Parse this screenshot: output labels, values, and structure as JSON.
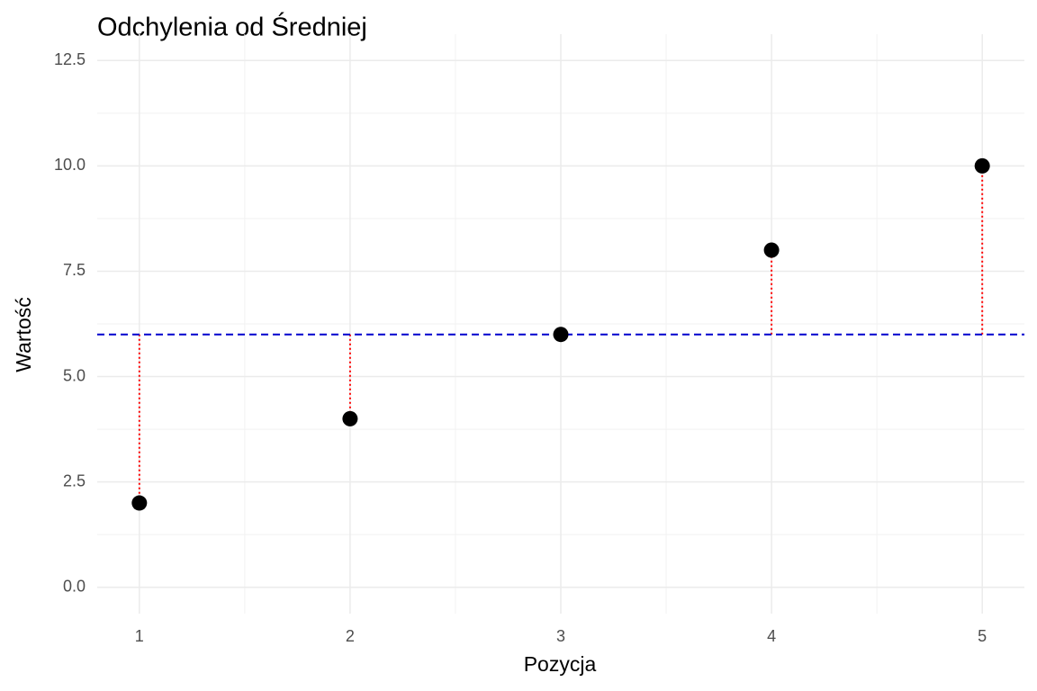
{
  "chart_data": {
    "type": "scatter",
    "title": "Odchylenia od Średniej",
    "x_label": "Pozycja",
    "y_label": "Wartość",
    "x": [
      1,
      2,
      3,
      4,
      5
    ],
    "values": [
      2,
      4,
      6,
      8,
      10
    ],
    "color": "#000000",
    "reference_line": {
      "value": 6,
      "color": "#0000cd"
    },
    "segment_color": "#ff0000",
    "xlim": [
      0.8,
      5.2
    ],
    "xticks": [
      1,
      2,
      3,
      4,
      5
    ],
    "ylim": [
      -0.625,
      13.125
    ],
    "yticks": [
      {
        "value": 0,
        "label": "0.0"
      },
      {
        "value": 2.5,
        "label": "2.5"
      },
      {
        "value": 5,
        "label": "5.0"
      },
      {
        "value": 7.5,
        "label": "7.5"
      },
      {
        "value": 10,
        "label": "10.0"
      },
      {
        "value": 12.5,
        "label": "12.5"
      }
    ],
    "grid": true
  }
}
